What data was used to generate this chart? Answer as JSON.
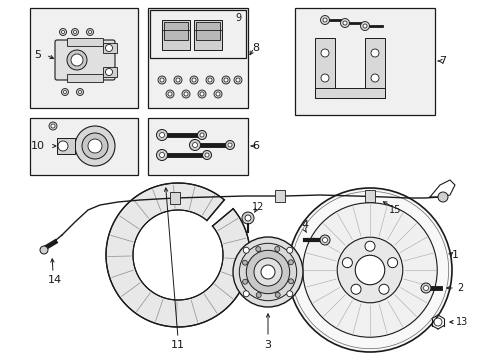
{
  "bg_color": "#ffffff",
  "line_color": "#1a1a1a",
  "fig_width": 4.89,
  "fig_height": 3.6,
  "dpi": 100,
  "box5_label": "5",
  "box8_label": "8",
  "box9_label": "9",
  "box6_label": "6",
  "box7_label": "7",
  "box10_label": "10",
  "label1": "1",
  "label2": "2",
  "label3": "3",
  "label4": "4",
  "label11": "11",
  "label12": "12",
  "label13": "13",
  "label14": "14",
  "label15": "15"
}
